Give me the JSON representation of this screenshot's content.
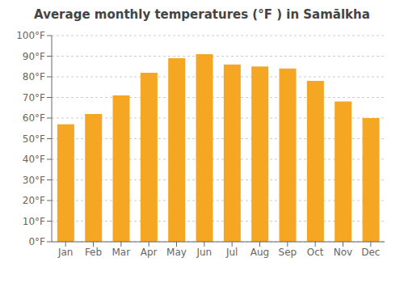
{
  "chart_data": {
    "type": "bar",
    "title": "Average monthly temperatures (°F ) in Samālkha",
    "categories": [
      "Jan",
      "Feb",
      "Mar",
      "Apr",
      "May",
      "Jun",
      "Jul",
      "Aug",
      "Sep",
      "Oct",
      "Nov",
      "Dec"
    ],
    "values": [
      57,
      62,
      71,
      82,
      89,
      91,
      86,
      85,
      84,
      78,
      68,
      60
    ],
    "color": "#F5A623",
    "ylim": [
      0,
      100
    ],
    "yticks": [
      {
        "value": 0,
        "label": "0°F"
      },
      {
        "value": 10,
        "label": "10°F"
      },
      {
        "value": 20,
        "label": "20°F"
      },
      {
        "value": 30,
        "label": "30°F"
      },
      {
        "value": 40,
        "label": "40°F"
      },
      {
        "value": 50,
        "label": "50°F"
      },
      {
        "value": 60,
        "label": "60°F"
      },
      {
        "value": 70,
        "label": "70°F"
      },
      {
        "value": 80,
        "label": "80°F"
      },
      {
        "value": 90,
        "label": "90°F"
      },
      {
        "value": 100,
        "label": "100°F"
      }
    ],
    "grid": true
  }
}
